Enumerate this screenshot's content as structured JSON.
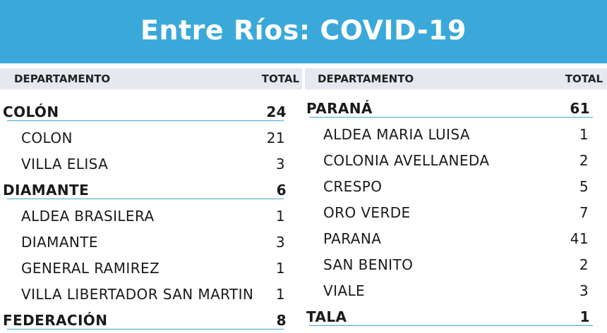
{
  "header": {
    "title": "Entre Ríos: COVID-19",
    "col_departamento": "DEPARTAMENTO",
    "col_total": "TOTAL"
  },
  "left": [
    {
      "kind": "group",
      "name": "COLÓN",
      "total": "24"
    },
    {
      "kind": "loc",
      "name": "COLON",
      "total": "21"
    },
    {
      "kind": "loc",
      "name": "VILLA ELISA",
      "total": "3"
    },
    {
      "kind": "group",
      "name": "DIAMANTE",
      "total": "6"
    },
    {
      "kind": "loc",
      "name": "ALDEA BRASILERA",
      "total": "1"
    },
    {
      "kind": "loc",
      "name": "DIAMANTE",
      "total": "3"
    },
    {
      "kind": "loc",
      "name": "GENERAL RAMIREZ",
      "total": "1"
    },
    {
      "kind": "loc",
      "name": "VILLA LIBERTADOR SAN MARTIN",
      "total": "1"
    },
    {
      "kind": "group",
      "name": "FEDERACIÓN",
      "total": "8"
    }
  ],
  "right": [
    {
      "kind": "group",
      "name": "PARANÁ",
      "total": "61"
    },
    {
      "kind": "loc",
      "name": "ALDEA MARIA LUISA",
      "total": "1"
    },
    {
      "kind": "loc",
      "name": "COLONIA AVELLANEDA",
      "total": "2"
    },
    {
      "kind": "loc",
      "name": "CRESPO",
      "total": "5"
    },
    {
      "kind": "loc",
      "name": "ORO VERDE",
      "total": "7"
    },
    {
      "kind": "loc",
      "name": "PARANA",
      "total": "41"
    },
    {
      "kind": "loc",
      "name": "SAN BENITO",
      "total": "2"
    },
    {
      "kind": "loc",
      "name": "VIALE",
      "total": "3"
    },
    {
      "kind": "group",
      "name": "TALA",
      "total": "1"
    }
  ],
  "colors": {
    "banner": "#3aa9d9",
    "header_strip": "#e5e8ee",
    "rule": "#3aa9d9"
  }
}
